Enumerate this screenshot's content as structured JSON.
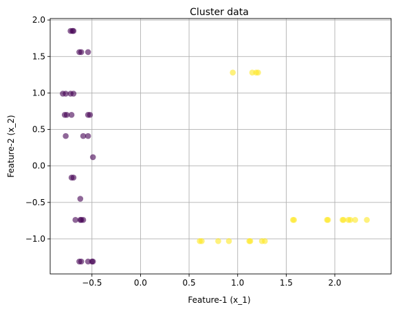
{
  "chart_data": {
    "type": "scatter",
    "title": "Cluster data",
    "xlabel": "Feature-1 (x_1)",
    "ylabel": "Feature-2 (x_2)",
    "xlim": [
      -0.93,
      2.58
    ],
    "ylim": [
      -1.48,
      2.02
    ],
    "xticks": [
      -0.5,
      0.0,
      0.5,
      1.0,
      1.5,
      2.0
    ],
    "xtick_labels": [
      "−0.5",
      "0.0",
      "0.5",
      "1.0",
      "1.5",
      "2.0"
    ],
    "yticks": [
      -1.0,
      -0.5,
      0.0,
      0.5,
      1.0,
      1.5,
      2.0
    ],
    "ytick_labels": [
      "−1.0",
      "−0.5",
      "0.0",
      "0.5",
      "1.0",
      "1.5",
      "2.0"
    ],
    "grid": true,
    "legend": "none",
    "marker_alpha": 0.6,
    "colors": {
      "cluster_a": "#440154",
      "cluster_b": "#fde725"
    },
    "points": [
      {
        "x": -0.72,
        "y": 1.85,
        "cluster": "cluster_a"
      },
      {
        "x": -0.7,
        "y": 1.85,
        "cluster": "cluster_a"
      },
      {
        "x": -0.69,
        "y": 1.85,
        "cluster": "cluster_a"
      },
      {
        "x": -0.63,
        "y": 1.56,
        "cluster": "cluster_a"
      },
      {
        "x": -0.61,
        "y": 1.56,
        "cluster": "cluster_a"
      },
      {
        "x": -0.54,
        "y": 1.56,
        "cluster": "cluster_a"
      },
      {
        "x": -0.8,
        "y": 0.99,
        "cluster": "cluster_a"
      },
      {
        "x": -0.77,
        "y": 0.99,
        "cluster": "cluster_a"
      },
      {
        "x": -0.72,
        "y": 0.99,
        "cluster": "cluster_a"
      },
      {
        "x": -0.69,
        "y": 0.99,
        "cluster": "cluster_a"
      },
      {
        "x": -0.78,
        "y": 0.7,
        "cluster": "cluster_a"
      },
      {
        "x": -0.76,
        "y": 0.7,
        "cluster": "cluster_a"
      },
      {
        "x": -0.71,
        "y": 0.7,
        "cluster": "cluster_a"
      },
      {
        "x": -0.54,
        "y": 0.7,
        "cluster": "cluster_a"
      },
      {
        "x": -0.52,
        "y": 0.7,
        "cluster": "cluster_a"
      },
      {
        "x": -0.77,
        "y": 0.41,
        "cluster": "cluster_a"
      },
      {
        "x": -0.59,
        "y": 0.41,
        "cluster": "cluster_a"
      },
      {
        "x": -0.54,
        "y": 0.41,
        "cluster": "cluster_a"
      },
      {
        "x": -0.49,
        "y": 0.12,
        "cluster": "cluster_a"
      },
      {
        "x": -0.71,
        "y": -0.16,
        "cluster": "cluster_a"
      },
      {
        "x": -0.69,
        "y": -0.16,
        "cluster": "cluster_a"
      },
      {
        "x": -0.62,
        "y": -0.45,
        "cluster": "cluster_a"
      },
      {
        "x": -0.67,
        "y": -0.74,
        "cluster": "cluster_a"
      },
      {
        "x": -0.62,
        "y": -0.74,
        "cluster": "cluster_a"
      },
      {
        "x": -0.61,
        "y": -0.74,
        "cluster": "cluster_a"
      },
      {
        "x": -0.59,
        "y": -0.74,
        "cluster": "cluster_a"
      },
      {
        "x": -0.63,
        "y": -1.31,
        "cluster": "cluster_a"
      },
      {
        "x": -0.61,
        "y": -1.31,
        "cluster": "cluster_a"
      },
      {
        "x": -0.54,
        "y": -1.31,
        "cluster": "cluster_a"
      },
      {
        "x": -0.5,
        "y": -1.31,
        "cluster": "cluster_a"
      },
      {
        "x": -0.49,
        "y": -1.31,
        "cluster": "cluster_a"
      },
      {
        "x": 0.95,
        "y": 1.28,
        "cluster": "cluster_b"
      },
      {
        "x": 1.15,
        "y": 1.28,
        "cluster": "cluster_b"
      },
      {
        "x": 1.19,
        "y": 1.28,
        "cluster": "cluster_b"
      },
      {
        "x": 1.21,
        "y": 1.28,
        "cluster": "cluster_b"
      },
      {
        "x": 1.57,
        "y": -0.74,
        "cluster": "cluster_b"
      },
      {
        "x": 1.58,
        "y": -0.74,
        "cluster": "cluster_b"
      },
      {
        "x": 1.92,
        "y": -0.74,
        "cluster": "cluster_b"
      },
      {
        "x": 1.93,
        "y": -0.74,
        "cluster": "cluster_b"
      },
      {
        "x": 2.08,
        "y": -0.74,
        "cluster": "cluster_b"
      },
      {
        "x": 2.09,
        "y": -0.74,
        "cluster": "cluster_b"
      },
      {
        "x": 2.14,
        "y": -0.74,
        "cluster": "cluster_b"
      },
      {
        "x": 2.16,
        "y": -0.74,
        "cluster": "cluster_b"
      },
      {
        "x": 2.21,
        "y": -0.74,
        "cluster": "cluster_b"
      },
      {
        "x": 2.33,
        "y": -0.74,
        "cluster": "cluster_b"
      },
      {
        "x": 0.61,
        "y": -1.03,
        "cluster": "cluster_b"
      },
      {
        "x": 0.63,
        "y": -1.03,
        "cluster": "cluster_b"
      },
      {
        "x": 0.8,
        "y": -1.03,
        "cluster": "cluster_b"
      },
      {
        "x": 0.91,
        "y": -1.03,
        "cluster": "cluster_b"
      },
      {
        "x": 1.12,
        "y": -1.03,
        "cluster": "cluster_b"
      },
      {
        "x": 1.13,
        "y": -1.03,
        "cluster": "cluster_b"
      },
      {
        "x": 1.25,
        "y": -1.03,
        "cluster": "cluster_b"
      },
      {
        "x": 1.28,
        "y": -1.03,
        "cluster": "cluster_b"
      }
    ]
  }
}
